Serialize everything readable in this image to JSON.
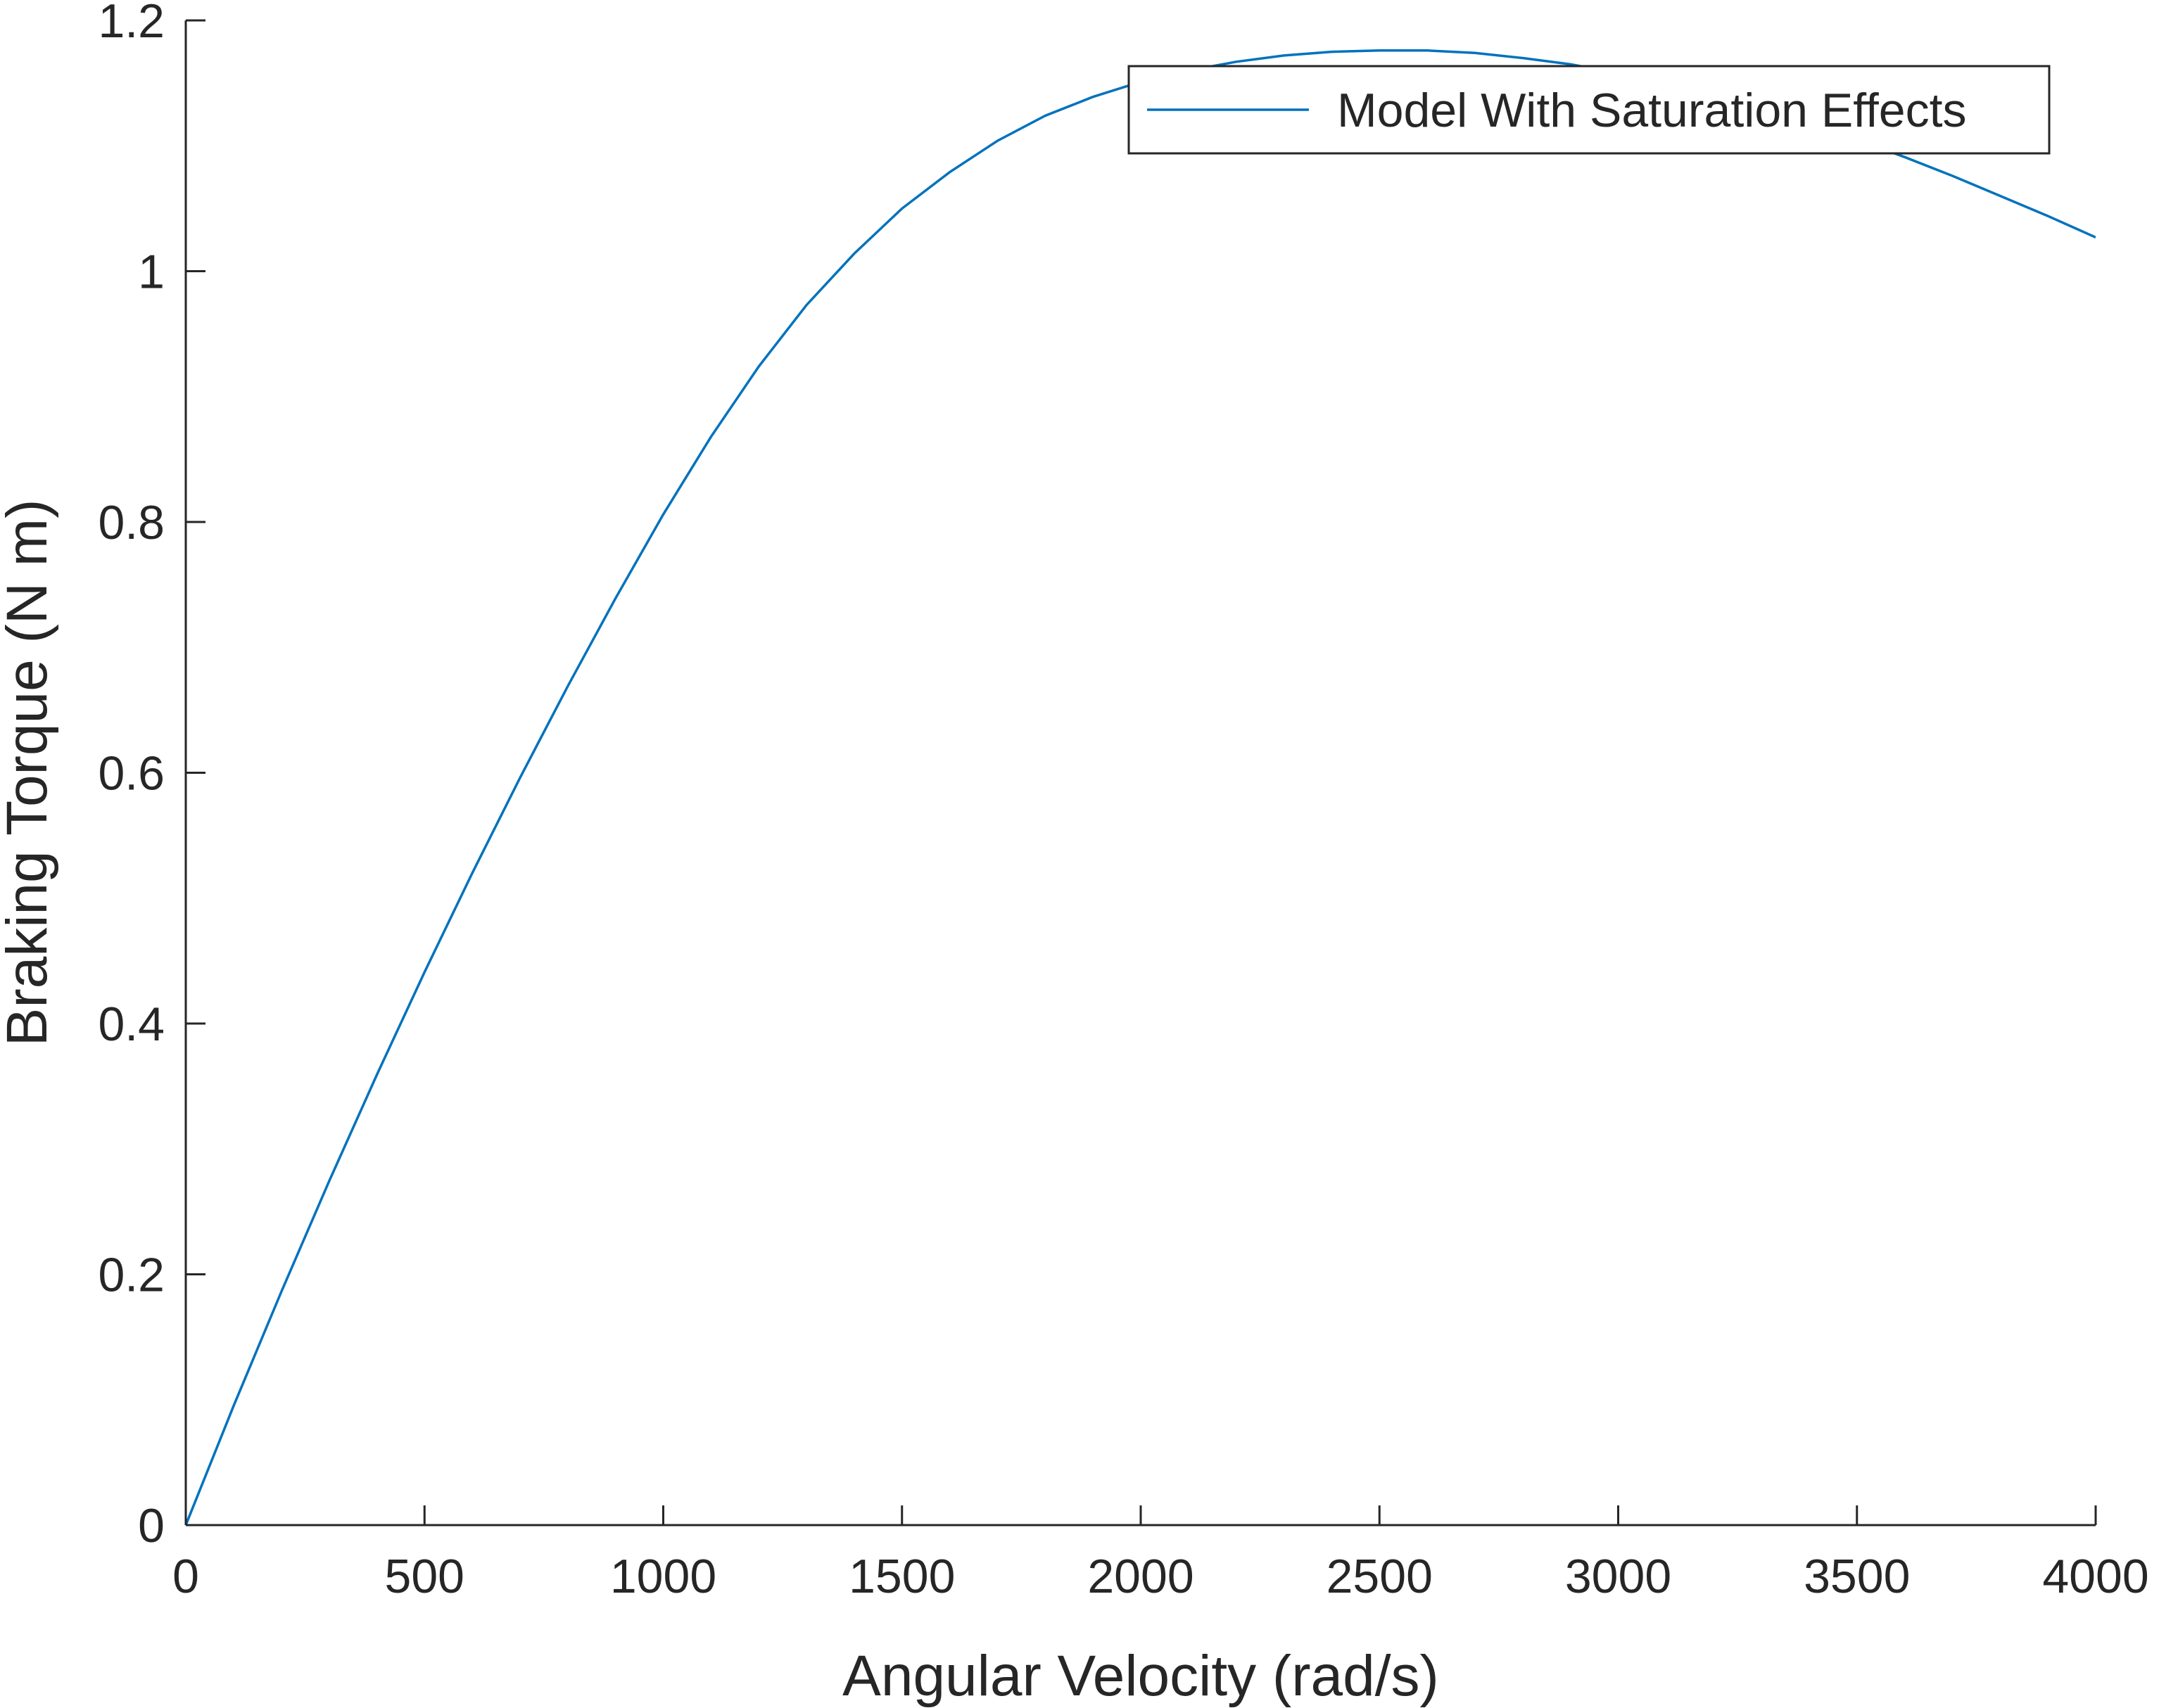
{
  "chart_data": {
    "type": "line",
    "title": "",
    "xlabel": "Angular Velocity (rad/s)",
    "ylabel": "Braking Torque (N m)",
    "xlim": [
      0,
      4000
    ],
    "ylim": [
      0,
      1.2
    ],
    "xticks": [
      0,
      500,
      1000,
      1500,
      2000,
      2500,
      3000,
      3500,
      4000
    ],
    "xtick_labels": [
      "0",
      "500",
      "1000",
      "1500",
      "2000",
      "2500",
      "3000",
      "3500",
      "4000"
    ],
    "yticks": [
      0,
      0.2,
      0.4,
      0.6,
      0.8,
      1.0,
      1.2
    ],
    "ytick_labels": [
      "0",
      "0.2",
      "0.4",
      "0.6",
      "0.8",
      "1",
      "1.2"
    ],
    "grid": false,
    "legend_position": "top-right",
    "series": [
      {
        "name": "Model With Saturation Effects",
        "color": "#0072BD",
        "x": [
          0,
          100,
          200,
          300,
          400,
          500,
          600,
          700,
          800,
          900,
          1000,
          1100,
          1200,
          1300,
          1400,
          1500,
          1600,
          1700,
          1800,
          1900,
          2000,
          2100,
          2200,
          2300,
          2400,
          2500,
          2600,
          2700,
          2800,
          2900,
          3000,
          3100,
          3200,
          3300,
          3400,
          3500,
          3600,
          3700,
          3800,
          3900,
          4000
        ],
        "y": [
          0,
          0.095,
          0.186,
          0.274,
          0.359,
          0.441,
          0.52,
          0.596,
          0.669,
          0.739,
          0.806,
          0.868,
          0.924,
          0.973,
          1.014,
          1.05,
          1.079,
          1.104,
          1.124,
          1.139,
          1.151,
          1.16,
          1.167,
          1.172,
          1.175,
          1.176,
          1.176,
          1.174,
          1.17,
          1.165,
          1.158,
          1.15,
          1.14,
          1.13,
          1.118,
          1.105,
          1.091,
          1.076,
          1.06,
          1.044,
          1.027
        ]
      }
    ]
  }
}
